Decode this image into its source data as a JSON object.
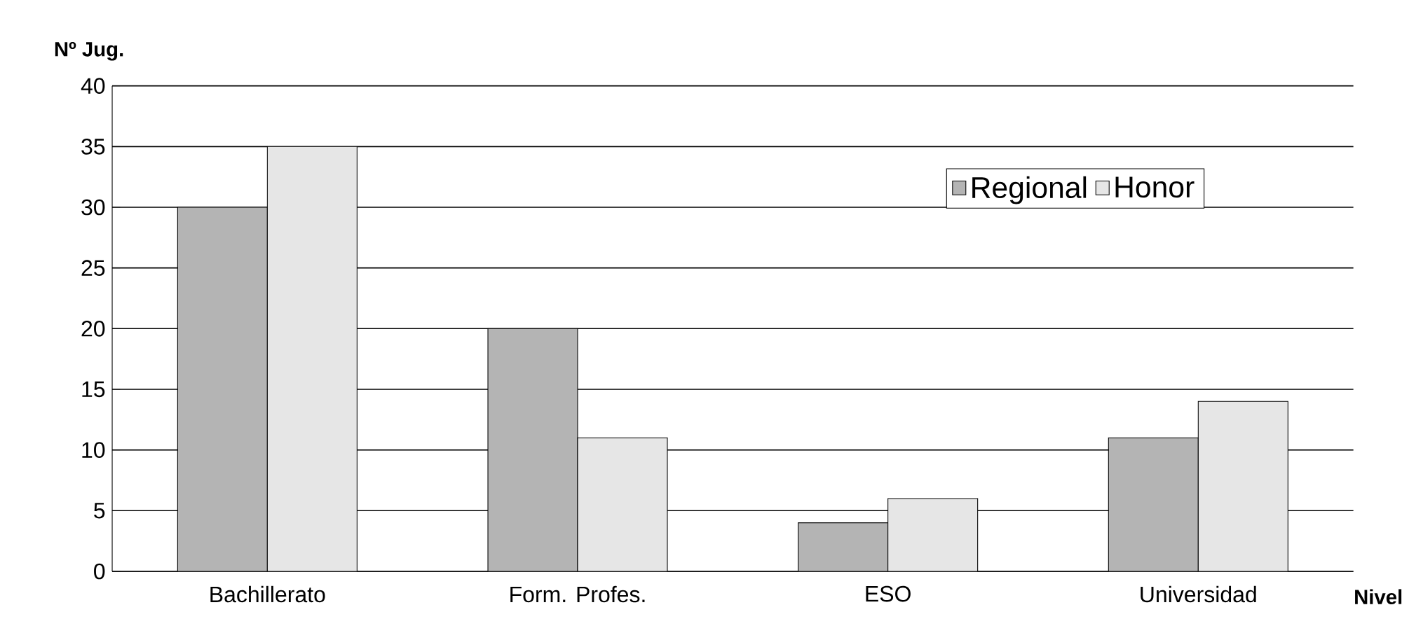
{
  "chart_data": {
    "type": "bar",
    "xlabel": "Nivel",
    "ylabel": "Nº Jug.",
    "categories": [
      "Bachillerato",
      "Form. Profes.",
      "ESO",
      "Universidad"
    ],
    "series": [
      {
        "name": "Regional",
        "color": "#b4b4b4",
        "values": [
          30,
          20,
          4,
          11
        ]
      },
      {
        "name": "Honor",
        "color": "#e6e6e6",
        "values": [
          35,
          11,
          6,
          14
        ]
      }
    ],
    "ylim": [
      0,
      40
    ],
    "yticks": [
      0,
      5,
      10,
      15,
      20,
      25,
      30,
      35,
      40
    ],
    "grid": "y",
    "legend": "top right"
  }
}
